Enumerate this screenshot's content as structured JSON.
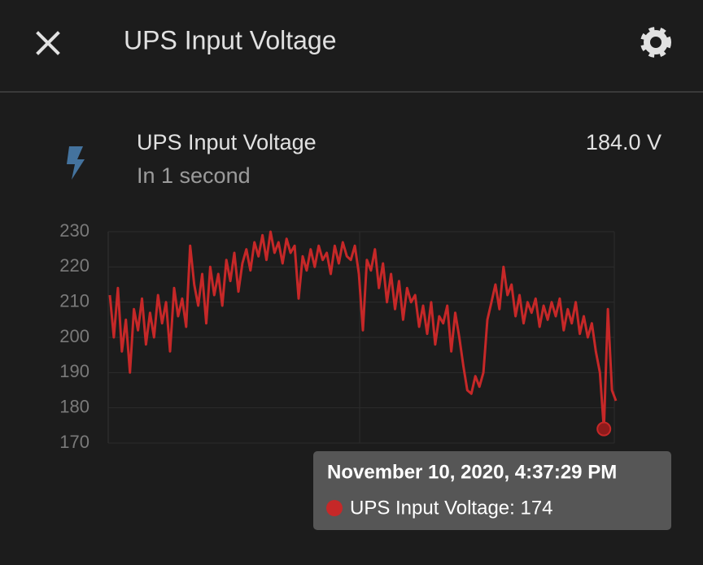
{
  "header": {
    "title": "UPS Input Voltage"
  },
  "entity": {
    "name": "UPS Input Voltage",
    "relative_time": "In 1 second",
    "state": "184.0 V"
  },
  "chart_data": {
    "type": "line",
    "ylim": [
      170,
      230
    ],
    "yticks": [
      170,
      180,
      190,
      200,
      210,
      220,
      230
    ],
    "grid": true,
    "series": [
      {
        "name": "UPS Input Voltage",
        "color": "#c62828",
        "values": [
          212,
          200,
          214,
          196,
          205,
          190,
          208,
          202,
          211,
          198,
          207,
          200,
          212,
          204,
          210,
          196,
          214,
          206,
          211,
          203,
          226,
          215,
          209,
          218,
          204,
          220,
          212,
          218,
          209,
          222,
          216,
          224,
          213,
          221,
          225,
          219,
          227,
          223,
          229,
          222,
          230,
          224,
          227,
          221,
          228,
          224,
          226,
          211,
          223,
          219,
          225,
          220,
          226,
          222,
          224,
          218,
          226,
          221,
          227,
          223,
          222,
          226,
          218,
          202,
          222,
          219,
          225,
          214,
          221,
          210,
          218,
          208,
          216,
          205,
          214,
          210,
          212,
          203,
          209,
          201,
          210,
          198,
          206,
          204,
          209,
          196,
          207,
          200,
          192,
          185,
          184,
          189,
          186,
          190,
          205,
          210,
          215,
          208,
          220,
          212,
          215,
          206,
          212,
          204,
          210,
          207,
          211,
          203,
          209,
          205,
          210,
          206,
          211,
          202,
          208,
          204,
          210,
          201,
          206,
          200,
          204,
          196,
          190,
          174,
          208,
          185,
          182
        ]
      }
    ],
    "tooltip": {
      "title": "November 10, 2020, 4:37:29 PM",
      "label": "UPS Input Voltage: 174"
    }
  }
}
